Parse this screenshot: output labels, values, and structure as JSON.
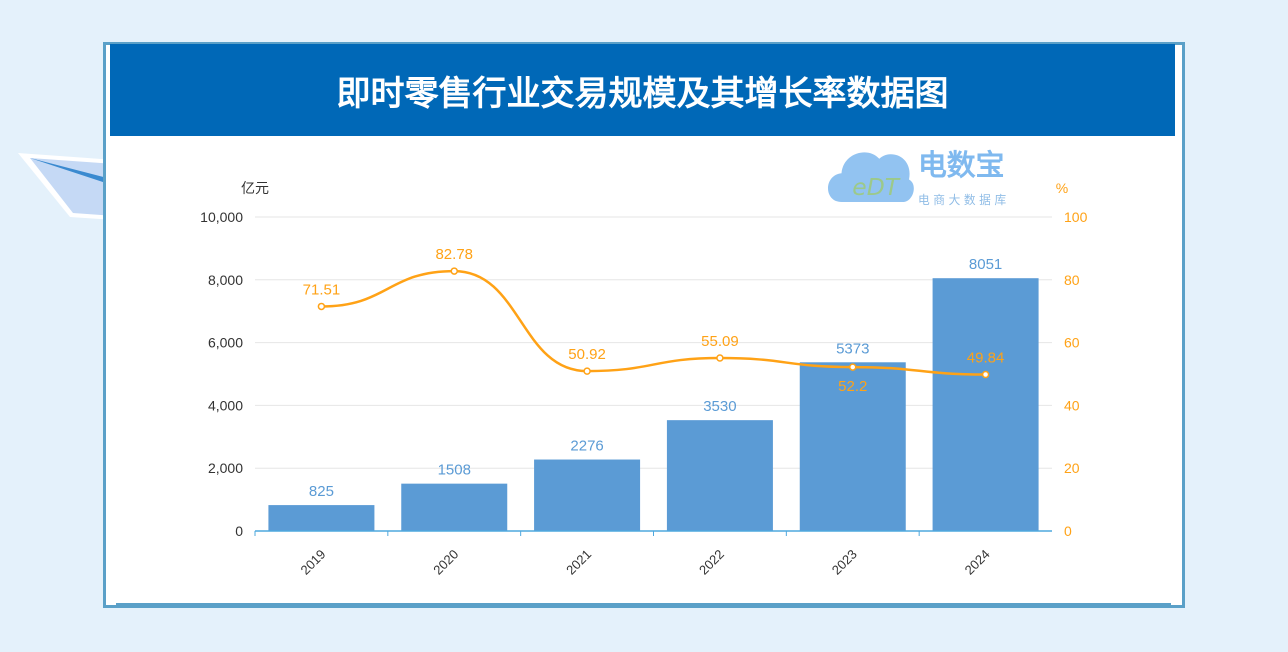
{
  "title": "即时零售行业交易规模及其增长率数据图",
  "watermark": {
    "name": "电数宝",
    "sub": "电商大数据库",
    "mark": "eDT"
  },
  "chart_data": {
    "type": "bar+line",
    "title": "即时零售行业交易规模及其增长率数据图",
    "categories": [
      "2019",
      "2020",
      "2021",
      "2022",
      "2023",
      "2024"
    ],
    "series": [
      {
        "type": "bar",
        "axis": "left",
        "values": [
          825,
          1508,
          2276,
          3530,
          5373,
          8051
        ],
        "color": "#5b9bd5"
      },
      {
        "type": "line",
        "axis": "right",
        "smooth": true,
        "values": [
          71.51,
          82.78,
          50.92,
          55.09,
          52.2,
          49.84
        ],
        "color": "#ffa216"
      }
    ],
    "y_left": {
      "label": "亿元",
      "range": [
        0,
        10000
      ],
      "ticks": [
        "0",
        "2,000",
        "4,000",
        "6,000",
        "8,000",
        "10,000"
      ]
    },
    "y_right": {
      "label": "%",
      "range": [
        0,
        100
      ],
      "ticks": [
        "0",
        "20",
        "40",
        "60",
        "80",
        "100"
      ]
    },
    "grid": true
  }
}
